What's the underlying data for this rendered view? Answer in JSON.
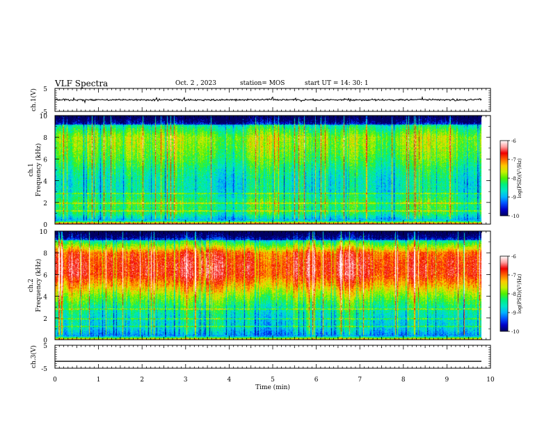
{
  "header": {
    "title": "VLF Spectra",
    "date": "Oct. 2 , 2023",
    "station": "station= MOS",
    "start_ut": "start  UT =  14: 30: 1"
  },
  "colorbar_label": "log(PSD)(V²/Hz)",
  "colors": {
    "colormap": [
      "#000060",
      "#0000c8",
      "#0050ff",
      "#00b4ff",
      "#00e6c8",
      "#00f080",
      "#50f000",
      "#c8f000",
      "#ffc800",
      "#ff6400",
      "#f00000",
      "#ffa0a0",
      "#ffffff"
    ],
    "trace": "#000000"
  },
  "chart_data": [
    {
      "type": "line",
      "panel": "ch.1 waveform",
      "ylabel": "ch.1(V)",
      "ylim": [
        -5,
        5
      ],
      "yticks": [
        "5",
        "-5"
      ],
      "xlim": [
        0,
        10
      ],
      "x_end": 9.8,
      "series": [
        {
          "values_approx": 0.0
        }
      ]
    },
    {
      "type": "heatmap",
      "panel": "ch.1 spectrogram",
      "ylabel": "ch.1 Frequency (kHz)",
      "ylim": [
        0,
        10
      ],
      "yticks": [
        "0",
        "2",
        "4",
        "6",
        "8",
        "10"
      ],
      "xlim": [
        0,
        10
      ],
      "x_end": 9.8,
      "colorbar": {
        "range": [
          -10,
          -6
        ],
        "ticks": [
          "-6",
          "-7",
          "-8",
          "-9",
          "-10"
        ]
      },
      "profile": {
        "freq_kHz": [
          0,
          0.3,
          1,
          2,
          3,
          4,
          5,
          6,
          7,
          8,
          9,
          9.5,
          10
        ],
        "log_psd": [
          -6.8,
          -9.0,
          -8.3,
          -8.2,
          -8.6,
          -8.6,
          -8.4,
          -8.1,
          -7.9,
          -7.8,
          -8.4,
          -9.2,
          -9.6
        ]
      }
    },
    {
      "type": "heatmap",
      "panel": "ch.2 spectrogram",
      "ylabel": "ch.2 Frequency (kHz)",
      "ylim": [
        0,
        10
      ],
      "yticks": [
        "0",
        "2",
        "4",
        "6",
        "8",
        "10"
      ],
      "xlim": [
        0,
        10
      ],
      "x_end": 9.8,
      "colorbar": {
        "range": [
          -10,
          -6
        ],
        "ticks": [
          "-6",
          "-7",
          "-8",
          "-9",
          "-10"
        ]
      },
      "profile": {
        "freq_kHz": [
          0,
          0.3,
          1,
          2,
          3,
          4,
          5,
          6,
          7,
          8,
          9,
          9.5,
          10
        ],
        "log_psd": [
          -7.2,
          -9.1,
          -8.7,
          -8.6,
          -8.3,
          -7.8,
          -7.2,
          -6.7,
          -6.7,
          -6.9,
          -8.2,
          -9.1,
          -9.6
        ]
      }
    },
    {
      "type": "line",
      "panel": "ch.3 waveform",
      "ylabel": "ch.3(V)",
      "ylim": [
        -5,
        5
      ],
      "yticks": [
        "5",
        "-5"
      ],
      "xlim": [
        0,
        10
      ],
      "x_end": 9.8,
      "series": [
        {
          "values_approx": -2.0
        }
      ]
    }
  ],
  "xaxis": {
    "label": "Time  (min)",
    "ticks": [
      "0",
      "1",
      "2",
      "3",
      "4",
      "5",
      "6",
      "7",
      "8",
      "9",
      "10"
    ]
  }
}
